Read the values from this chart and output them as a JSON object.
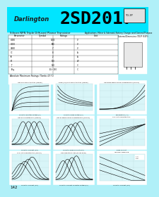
{
  "bg_color": "#00e5ff",
  "page_bg": "#b0f0f8",
  "title_text": "2SD2017",
  "brand_text": "Darlington",
  "subtitle": "Silicon NPN Triple Diffused Planar Transistor",
  "page_number": "142",
  "header_bg": "#00e5ff",
  "table_bg": "#ffffff",
  "grid_color": "#aaaaaa",
  "curve_color": "#000000",
  "chart_bg": "#d8f5f8"
}
